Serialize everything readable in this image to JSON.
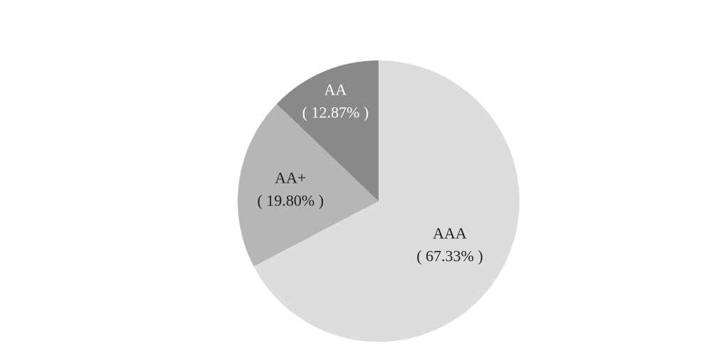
{
  "chart_data": {
    "type": "pie",
    "title": "",
    "start_angle": "12 o'clock",
    "direction": "clockwise",
    "legend": "none",
    "slices": [
      {
        "label": "AAA",
        "value": 67.33,
        "display": "( 67.33% )",
        "color": "#dcdddd",
        "text_color": "#231f20"
      },
      {
        "label": "AA+",
        "value": 19.8,
        "display": "( 19.80% )",
        "color": "#b5b6b6",
        "text_color": "#231f20"
      },
      {
        "label": "AA",
        "value": 12.87,
        "display": "( 12.87% )",
        "color": "#898989",
        "text_color": "#ffffff"
      }
    ]
  }
}
